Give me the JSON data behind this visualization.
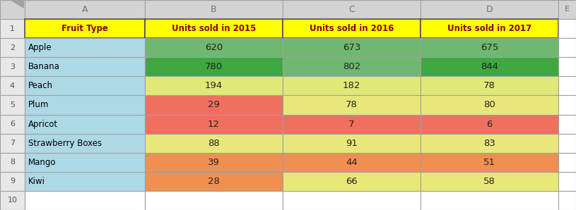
{
  "headers": [
    "Fruit Type",
    "Units sold in 2015",
    "Units sold in 2016",
    "Units sold in 2017"
  ],
  "row_labels": [
    "Apple",
    "Banana",
    "Peach",
    "Plum",
    "Apricot",
    "Strawberry Boxes",
    "Mango",
    "Kiwi"
  ],
  "data": [
    [
      620,
      673,
      675
    ],
    [
      780,
      802,
      844
    ],
    [
      194,
      182,
      78
    ],
    [
      29,
      78,
      80
    ],
    [
      12,
      7,
      6
    ],
    [
      88,
      91,
      83
    ],
    [
      39,
      44,
      51
    ],
    [
      28,
      66,
      58
    ]
  ],
  "cell_colors": [
    [
      "#70B870",
      "#70B870",
      "#70B870"
    ],
    [
      "#3EA83E",
      "#70B870",
      "#3EA83E"
    ],
    [
      "#E0E878",
      "#E0E878",
      "#E0E878"
    ],
    [
      "#F07060",
      "#E8E87A",
      "#E8E87A"
    ],
    [
      "#F07060",
      "#F07060",
      "#F07060"
    ],
    [
      "#E8E87A",
      "#E8E87A",
      "#E8E87A"
    ],
    [
      "#F09050",
      "#F09050",
      "#F09050"
    ],
    [
      "#F09050",
      "#E8E87A",
      "#E8E87A"
    ]
  ],
  "header_bg": "#FFFF00",
  "header_text": "#8B0000",
  "label_bg": "#ADD8E6",
  "label_text": "#000000",
  "excel_hdr_bg": "#D3D3D3",
  "excel_hdr_text": "#707070",
  "grid_color": "#B0B0B0",
  "row_num_bg": "#E8E8E8",
  "row_num_text": "#505050",
  "empty_cell_bg": "#FFFFFF",
  "figsize": [
    8.15,
    2.98
  ],
  "dpi": 100
}
